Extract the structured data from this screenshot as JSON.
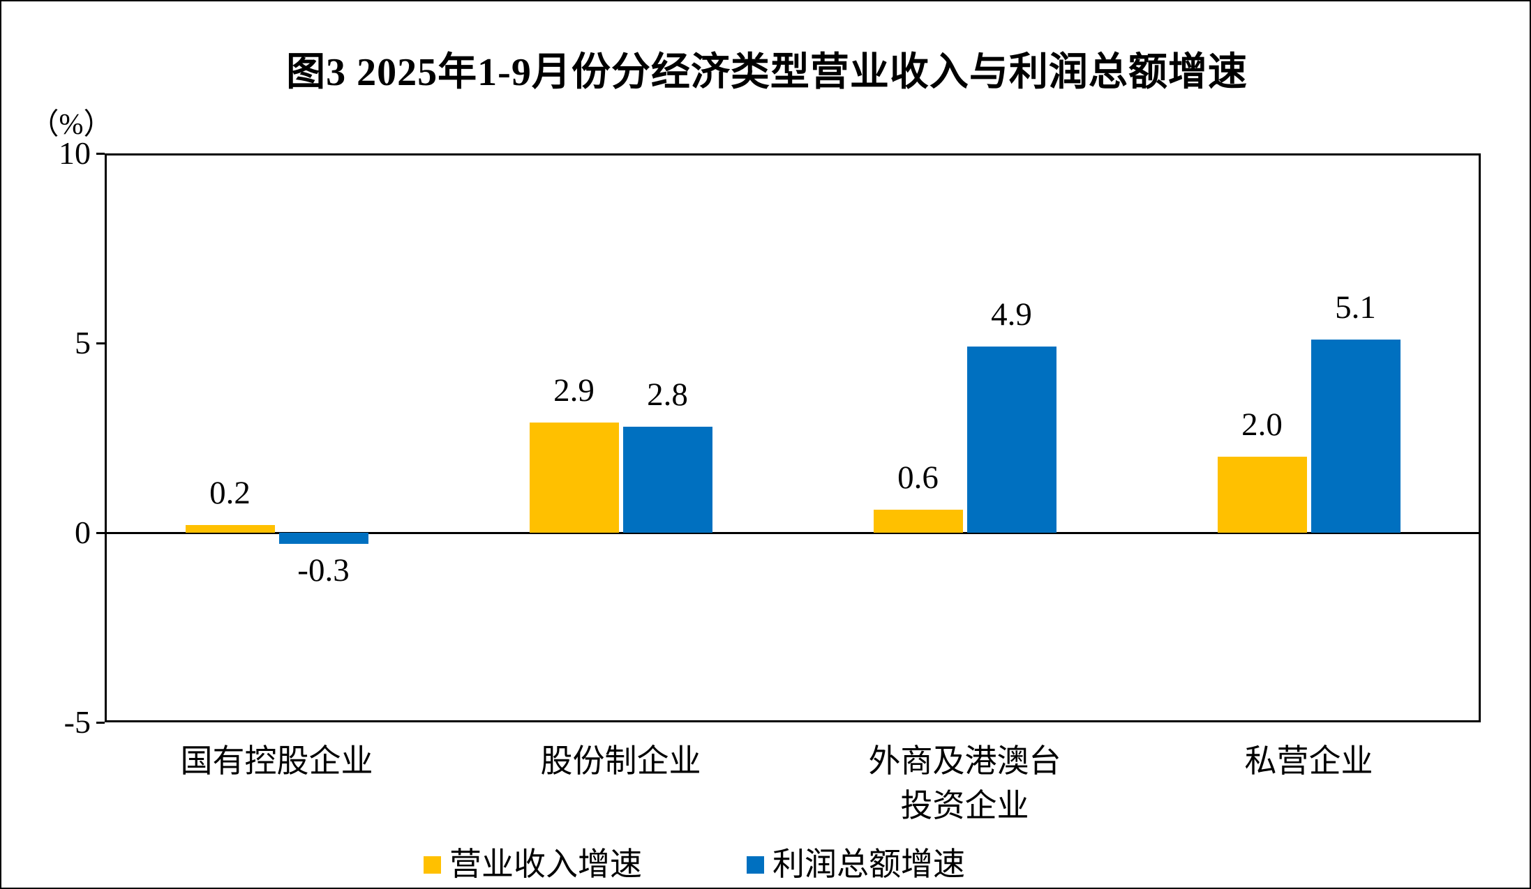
{
  "figure": {
    "frame_color": "#000000",
    "background": "#ffffff"
  },
  "chart_data": {
    "type": "bar",
    "title": "图3 2025年1-9月份分经济类型营业收入与利润总额增速",
    "ylabel": "（%）",
    "xlabel": "",
    "ylim": [
      -5,
      10
    ],
    "yticks": [
      10,
      5,
      0,
      -5
    ],
    "ytick_labels": [
      "10",
      "5",
      "0",
      "-5"
    ],
    "grid": "off",
    "legend_position": "bottom-center",
    "categories": [
      "国有控股企业",
      "股份制企业",
      "外商及港澳台\n投资企业",
      "私营企业"
    ],
    "series": [
      {
        "name": "营业收入增速",
        "color": "#FFC000",
        "values": [
          0.2,
          2.9,
          0.6,
          2.0
        ],
        "labels": [
          "0.2",
          "2.9",
          "0.6",
          "2.0"
        ]
      },
      {
        "name": "利润总额增速",
        "color": "#0070C0",
        "values": [
          -0.3,
          2.8,
          4.9,
          5.1
        ],
        "labels": [
          "-0.3",
          "2.8",
          "4.9",
          "5.1"
        ]
      }
    ]
  }
}
